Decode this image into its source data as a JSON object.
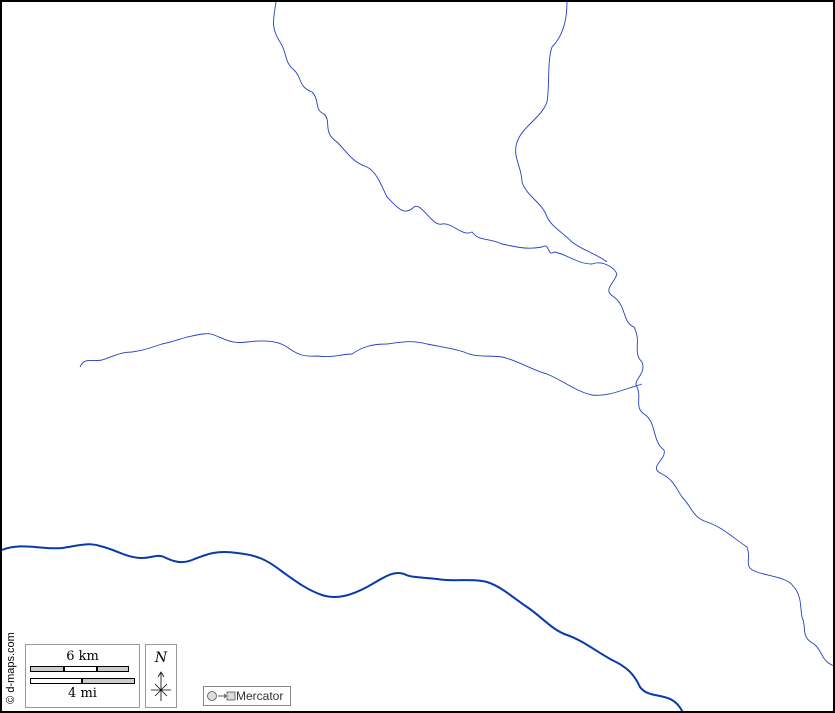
{
  "credit": "© d-maps.com",
  "scale": {
    "km_label": "6 km",
    "mi_label": "4 mi"
  },
  "north_label": "N",
  "projection": "Mercator",
  "colors": {
    "river_minor": "#1f3fbf",
    "river_major": "#0a3aa8",
    "border": "#000000"
  }
}
